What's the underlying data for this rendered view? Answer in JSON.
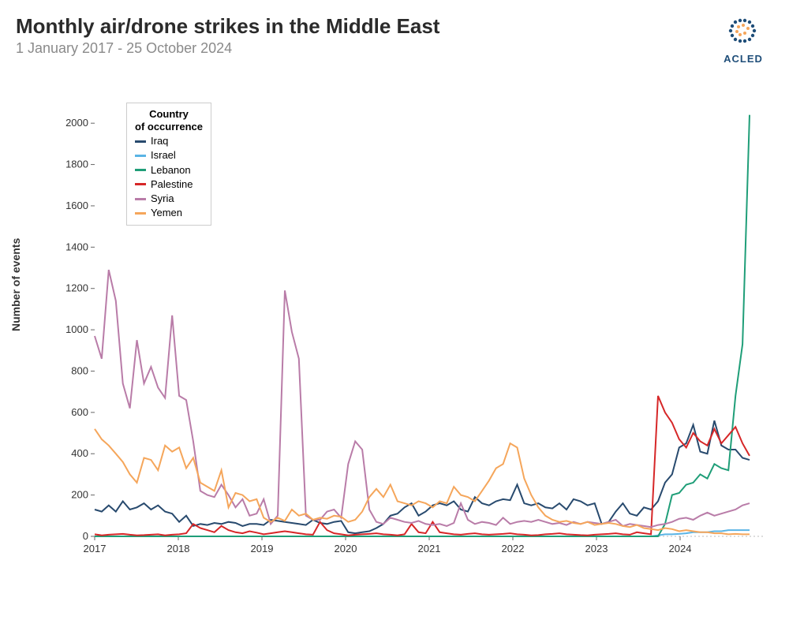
{
  "title": "Monthly air/drone strikes in the Middle East",
  "subtitle": "1 January 2017 - 25 October 2024",
  "brand": "ACLED",
  "ylabel": "Number of events",
  "chart": {
    "type": "line",
    "background_color": "#ffffff",
    "grid_color": "#dddddd",
    "line_width": 2,
    "x_start": 2017.0,
    "x_end": 2024.83,
    "x_ticks": [
      2017,
      2018,
      2019,
      2020,
      2021,
      2022,
      2023,
      2024
    ],
    "ylim": [
      0,
      2100
    ],
    "y_ticks": [
      0,
      200,
      400,
      600,
      800,
      1000,
      1200,
      1400,
      1600,
      1800,
      2000
    ],
    "legend_title_line1": "Country",
    "legend_title_line2": "of occurrence",
    "legend_position": "top-left-inside",
    "label_fontsize": 13,
    "title_fontsize": 26,
    "series": [
      {
        "name": "Iraq",
        "color": "#284a6e",
        "values": [
          130,
          120,
          150,
          120,
          170,
          130,
          140,
          160,
          130,
          150,
          120,
          110,
          70,
          100,
          50,
          60,
          55,
          65,
          60,
          70,
          65,
          50,
          60,
          60,
          55,
          80,
          75,
          70,
          65,
          60,
          55,
          80,
          65,
          60,
          70,
          75,
          20,
          15,
          20,
          25,
          40,
          60,
          100,
          110,
          140,
          160,
          100,
          120,
          150,
          160,
          150,
          170,
          130,
          120,
          190,
          160,
          150,
          170,
          180,
          175,
          250,
          160,
          150,
          160,
          140,
          135,
          160,
          130,
          180,
          170,
          150,
          160,
          60,
          70,
          120,
          160,
          110,
          100,
          140,
          130,
          170,
          260,
          300,
          430,
          450,
          540,
          410,
          400,
          560,
          440,
          420,
          420,
          380,
          370
        ]
      },
      {
        "name": "Israel",
        "color": "#5ab4e5",
        "values": [
          0,
          0,
          0,
          0,
          0,
          0,
          0,
          0,
          0,
          0,
          0,
          0,
          0,
          0,
          0,
          0,
          0,
          0,
          0,
          0,
          0,
          0,
          0,
          0,
          0,
          0,
          0,
          0,
          0,
          0,
          0,
          0,
          0,
          0,
          0,
          0,
          0,
          0,
          0,
          0,
          0,
          0,
          0,
          0,
          0,
          0,
          0,
          0,
          0,
          0,
          0,
          0,
          0,
          0,
          0,
          0,
          0,
          0,
          0,
          0,
          0,
          0,
          0,
          0,
          0,
          0,
          0,
          0,
          0,
          0,
          0,
          0,
          0,
          0,
          0,
          0,
          0,
          0,
          0,
          0,
          5,
          10,
          10,
          12,
          15,
          20,
          20,
          20,
          25,
          25,
          30,
          30,
          30,
          30
        ]
      },
      {
        "name": "Lebanon",
        "color": "#1f9e78",
        "values": [
          0,
          0,
          0,
          0,
          0,
          0,
          0,
          0,
          0,
          0,
          0,
          0,
          0,
          0,
          0,
          0,
          0,
          0,
          0,
          0,
          0,
          0,
          0,
          0,
          0,
          0,
          0,
          0,
          0,
          0,
          0,
          0,
          0,
          0,
          0,
          0,
          0,
          0,
          0,
          0,
          0,
          0,
          0,
          0,
          0,
          0,
          0,
          0,
          0,
          0,
          0,
          0,
          0,
          0,
          0,
          0,
          0,
          0,
          0,
          0,
          0,
          0,
          0,
          0,
          0,
          0,
          0,
          0,
          0,
          0,
          0,
          0,
          0,
          0,
          0,
          0,
          0,
          0,
          0,
          0,
          0,
          60,
          200,
          210,
          250,
          260,
          300,
          280,
          350,
          330,
          320,
          680,
          930,
          2040
        ]
      },
      {
        "name": "Palestine",
        "color": "#d62728",
        "values": [
          10,
          5,
          8,
          10,
          12,
          8,
          5,
          6,
          8,
          10,
          5,
          8,
          10,
          15,
          60,
          40,
          30,
          20,
          50,
          30,
          20,
          15,
          25,
          18,
          10,
          15,
          20,
          25,
          20,
          15,
          10,
          8,
          70,
          30,
          15,
          10,
          5,
          8,
          10,
          12,
          15,
          10,
          8,
          5,
          10,
          60,
          20,
          15,
          70,
          20,
          15,
          10,
          8,
          12,
          15,
          10,
          8,
          10,
          12,
          15,
          10,
          8,
          5,
          6,
          10,
          12,
          15,
          10,
          8,
          6,
          5,
          8,
          10,
          12,
          15,
          10,
          8,
          20,
          15,
          10,
          680,
          600,
          550,
          470,
          430,
          500,
          460,
          440,
          520,
          450,
          490,
          530,
          450,
          390
        ]
      },
      {
        "name": "Syria",
        "color": "#b97ca8",
        "values": [
          970,
          860,
          1290,
          1140,
          740,
          620,
          950,
          740,
          820,
          720,
          670,
          1070,
          680,
          660,
          460,
          220,
          200,
          190,
          250,
          200,
          140,
          180,
          100,
          110,
          180,
          60,
          100,
          1190,
          990,
          860,
          100,
          80,
          80,
          120,
          130,
          90,
          350,
          460,
          420,
          130,
          70,
          60,
          90,
          80,
          70,
          65,
          75,
          60,
          55,
          60,
          50,
          65,
          160,
          80,
          60,
          70,
          65,
          55,
          90,
          60,
          70,
          75,
          70,
          80,
          70,
          60,
          65,
          55,
          70,
          60,
          70,
          65,
          60,
          70,
          80,
          50,
          60,
          55,
          50,
          45,
          55,
          60,
          70,
          85,
          90,
          80,
          100,
          115,
          100,
          110,
          120,
          130,
          150,
          160
        ]
      },
      {
        "name": "Yemen",
        "color": "#f5a65b",
        "values": [
          520,
          470,
          440,
          400,
          360,
          300,
          260,
          380,
          370,
          320,
          440,
          410,
          430,
          330,
          380,
          260,
          240,
          220,
          320,
          140,
          210,
          200,
          170,
          180,
          90,
          70,
          90,
          75,
          130,
          100,
          110,
          80,
          90,
          85,
          100,
          95,
          70,
          80,
          120,
          190,
          230,
          190,
          250,
          170,
          160,
          150,
          170,
          160,
          140,
          170,
          160,
          240,
          200,
          190,
          170,
          220,
          270,
          330,
          350,
          450,
          430,
          280,
          200,
          140,
          100,
          80,
          70,
          75,
          65,
          60,
          70,
          55,
          60,
          65,
          60,
          50,
          45,
          55,
          40,
          35,
          30,
          40,
          35,
          25,
          30,
          25,
          20,
          20,
          15,
          15,
          10,
          12,
          10,
          10
        ]
      }
    ]
  }
}
